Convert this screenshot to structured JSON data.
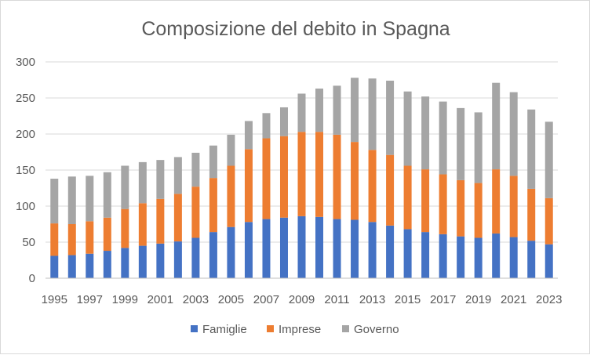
{
  "chart_data": {
    "type": "bar",
    "stacked": true,
    "title": "Composizione del debito in Spagna",
    "xlabel": "",
    "ylabel": "",
    "ylim": [
      0,
      300
    ],
    "yticks": [
      "0",
      "50",
      "100",
      "150",
      "200",
      "250",
      "300"
    ],
    "grid": true,
    "legend_position": "bottom",
    "categories": [
      "1995",
      "1996",
      "1997",
      "1998",
      "1999",
      "2000",
      "2001",
      "2002",
      "2003",
      "2004",
      "2005",
      "2006",
      "2007",
      "2008",
      "2009",
      "2010",
      "2011",
      "2012",
      "2013",
      "2014",
      "2015",
      "2016",
      "2017",
      "2018",
      "2019",
      "2020",
      "2021",
      "2022",
      "2023"
    ],
    "xtick_labels": [
      "1995",
      "1997",
      "1999",
      "2001",
      "2003",
      "2005",
      "2007",
      "2009",
      "2011",
      "2013",
      "2015",
      "2017",
      "2019",
      "2021",
      "2023"
    ],
    "series": [
      {
        "name": "Famiglie",
        "color": "#4472c4",
        "values": [
          31,
          32,
          34,
          38,
          42,
          45,
          48,
          51,
          56,
          64,
          71,
          78,
          82,
          84,
          86,
          85,
          82,
          81,
          78,
          73,
          68,
          64,
          61,
          58,
          56,
          62,
          57,
          52,
          47
        ]
      },
      {
        "name": "Imprese",
        "color": "#ed7d31",
        "values": [
          45,
          43,
          45,
          46,
          54,
          59,
          62,
          66,
          71,
          75,
          85,
          101,
          112,
          113,
          117,
          118,
          117,
          108,
          100,
          98,
          88,
          87,
          83,
          78,
          76,
          89,
          85,
          72,
          64
        ]
      },
      {
        "name": "Governo",
        "color": "#a5a5a5",
        "values": [
          62,
          66,
          63,
          63,
          60,
          57,
          54,
          51,
          47,
          45,
          43,
          39,
          35,
          40,
          53,
          60,
          68,
          89,
          99,
          103,
          103,
          101,
          101,
          100,
          98,
          120,
          116,
          110,
          106
        ]
      }
    ]
  }
}
